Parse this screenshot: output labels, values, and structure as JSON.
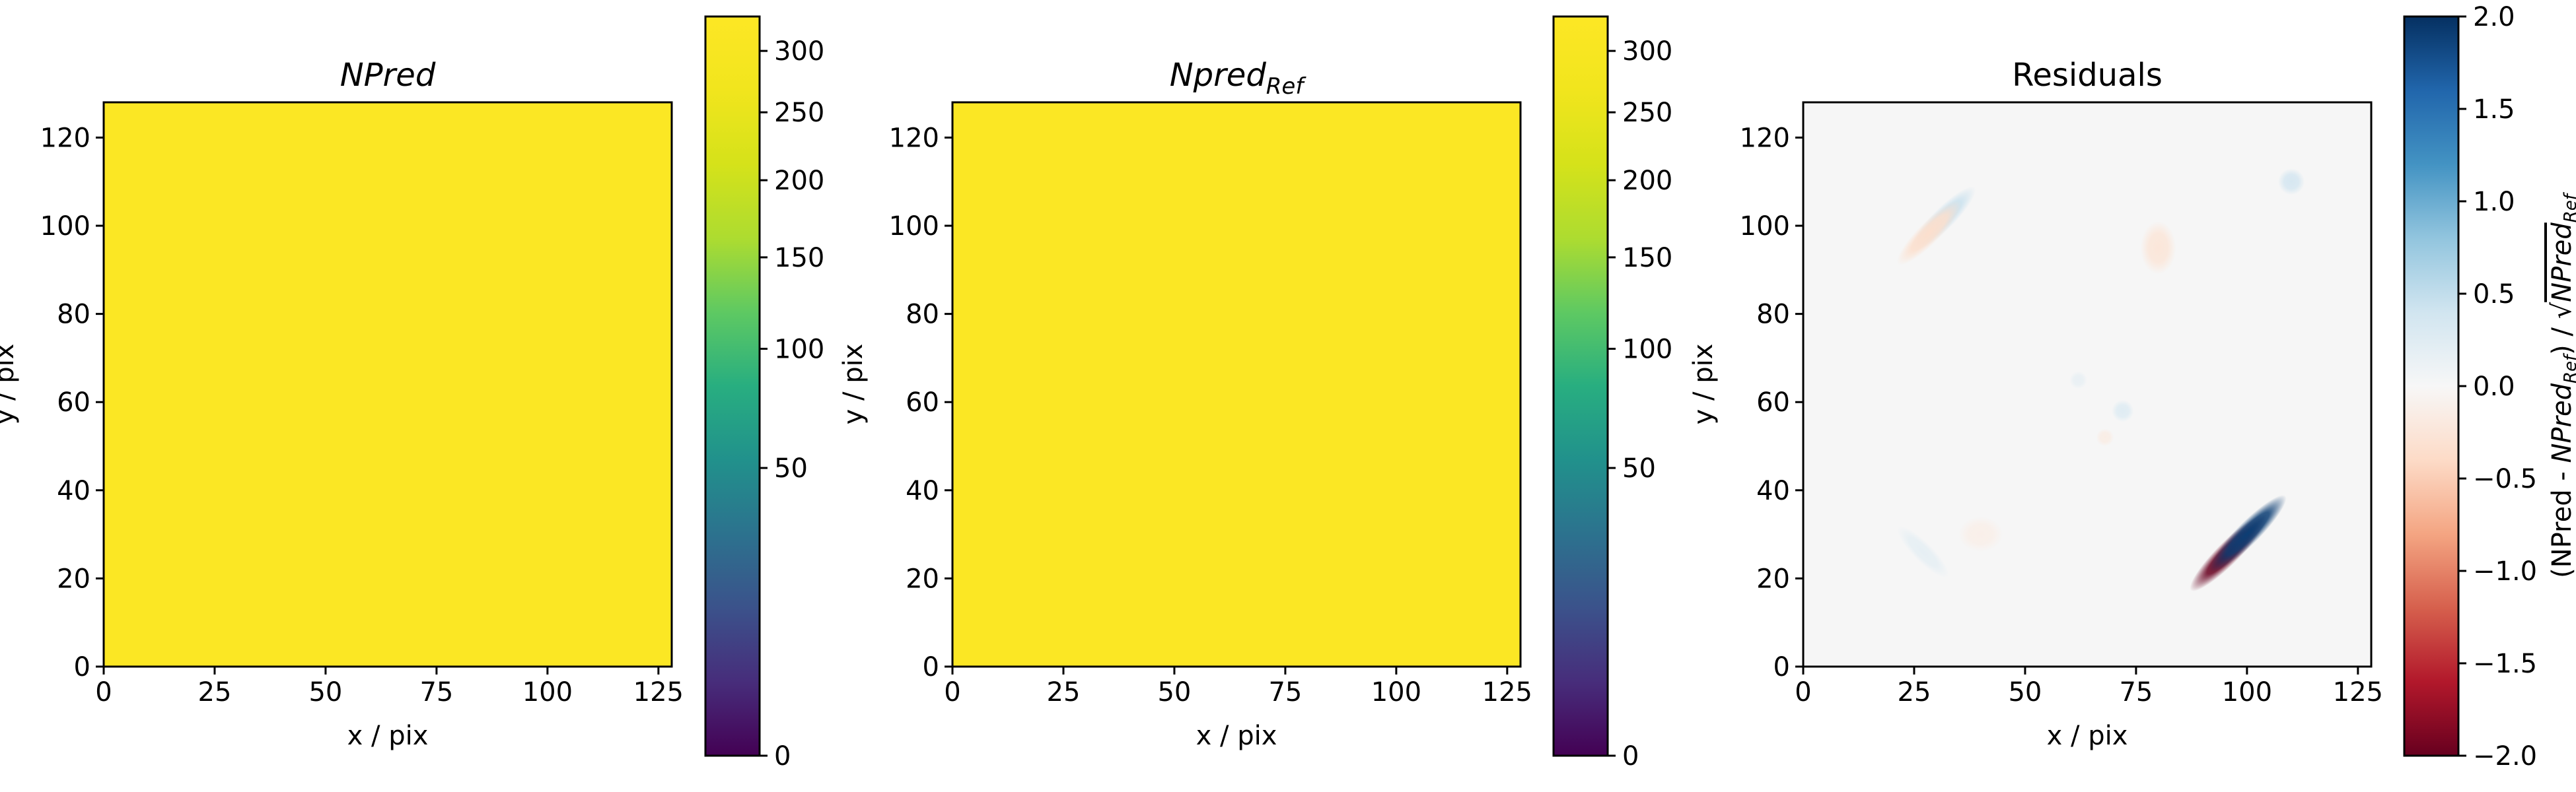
{
  "chart_data": [
    {
      "type": "heatmap",
      "title": "NPred",
      "xlabel": "x / pix",
      "ylabel": "y / pix",
      "xlim": [
        0,
        128
      ],
      "ylim": [
        0,
        128
      ],
      "xticks": [
        0,
        25,
        50,
        75,
        100,
        125
      ],
      "yticks": [
        0,
        20,
        40,
        60,
        80,
        100,
        120
      ],
      "fill_value": 330,
      "fill_color": "#fbe724",
      "colormap": "viridis",
      "colorbar": {
        "scale": "power",
        "range": [
          0,
          330
        ],
        "ticks": [
          0,
          50,
          100,
          150,
          200,
          250,
          300
        ],
        "label": ""
      }
    },
    {
      "type": "heatmap",
      "title": "Npred",
      "title_subscript": "Ref",
      "xlabel": "x / pix",
      "ylabel": "y / pix",
      "xlim": [
        0,
        128
      ],
      "ylim": [
        0,
        128
      ],
      "xticks": [
        0,
        25,
        50,
        75,
        100,
        125
      ],
      "yticks": [
        0,
        20,
        40,
        60,
        80,
        100,
        120
      ],
      "fill_value": 330,
      "fill_color": "#fbe724",
      "colormap": "viridis",
      "colorbar": {
        "scale": "power",
        "range": [
          0,
          330
        ],
        "ticks": [
          0,
          50,
          100,
          150,
          200,
          250,
          300
        ],
        "label": ""
      }
    },
    {
      "type": "heatmap",
      "title": "Residuals",
      "xlabel": "x / pix",
      "ylabel": "y / pix",
      "xlim": [
        0,
        128
      ],
      "ylim": [
        0,
        128
      ],
      "xticks": [
        0,
        25,
        50,
        75,
        100,
        125
      ],
      "yticks": [
        0,
        20,
        40,
        60,
        80,
        100,
        120
      ],
      "colormap": "RdBu",
      "colorbar": {
        "scale": "linear",
        "range": [
          -2.0,
          2.0
        ],
        "ticks": [
          -2.0,
          -1.5,
          -1.0,
          -0.5,
          0.0,
          0.5,
          1.0,
          1.5,
          2.0
        ],
        "tick_labels": [
          "−2.0",
          "−1.5",
          "−1.0",
          "−0.5",
          "0.0",
          "0.5",
          "1.0",
          "1.5",
          "2.0"
        ],
        "label": "(NPred - NPred_Ref) / √NPred_Ref",
        "label_parts": {
          "a": "(NPred - ",
          "b": "NPred",
          "c": "Ref",
          "d": ") / √",
          "e": "NPred",
          "f": "Ref"
        }
      },
      "features": [
        {
          "x": 98,
          "y": 28,
          "value": -2.0,
          "sx": 12,
          "sy": 2.6,
          "angle_deg": -45,
          "offset": [
            -2.2,
            -2.2
          ]
        },
        {
          "x": 98,
          "y": 28,
          "value": 1.9,
          "sx": 12,
          "sy": 2.6,
          "angle_deg": -45,
          "offset": [
            2.2,
            2.2
          ]
        },
        {
          "x": 30,
          "y": 100,
          "value": 0.45,
          "sx": 10,
          "sy": 2.5,
          "angle_deg": -45,
          "offset": [
            1.6,
            1.6
          ]
        },
        {
          "x": 30,
          "y": 100,
          "value": -0.35,
          "sx": 10,
          "sy": 2.5,
          "angle_deg": -45,
          "offset": [
            -1.6,
            -1.6
          ]
        },
        {
          "x": 110,
          "y": 110,
          "value": 0.35,
          "sx": 3,
          "sy": 3,
          "angle_deg": 0,
          "offset": [
            0,
            0
          ]
        },
        {
          "x": 80,
          "y": 95,
          "value": -0.25,
          "sx": 4,
          "sy": 6,
          "angle_deg": 0,
          "offset": [
            0,
            0
          ]
        },
        {
          "x": 72,
          "y": 58,
          "value": 0.25,
          "sx": 2.5,
          "sy": 2.5,
          "angle_deg": 0,
          "offset": [
            0,
            0
          ]
        },
        {
          "x": 62,
          "y": 65,
          "value": 0.15,
          "sx": 2,
          "sy": 2,
          "angle_deg": 0,
          "offset": [
            0,
            0
          ]
        },
        {
          "x": 68,
          "y": 52,
          "value": -0.15,
          "sx": 2,
          "sy": 2,
          "angle_deg": 0,
          "offset": [
            0,
            0
          ]
        },
        {
          "x": 27,
          "y": 26,
          "value": 0.18,
          "sx": 8,
          "sy": 2.2,
          "angle_deg": 45,
          "offset": [
            0,
            0
          ]
        },
        {
          "x": 40,
          "y": 30,
          "value": -0.12,
          "sx": 5,
          "sy": 4,
          "angle_deg": 0,
          "offset": [
            0,
            0
          ]
        }
      ]
    }
  ]
}
